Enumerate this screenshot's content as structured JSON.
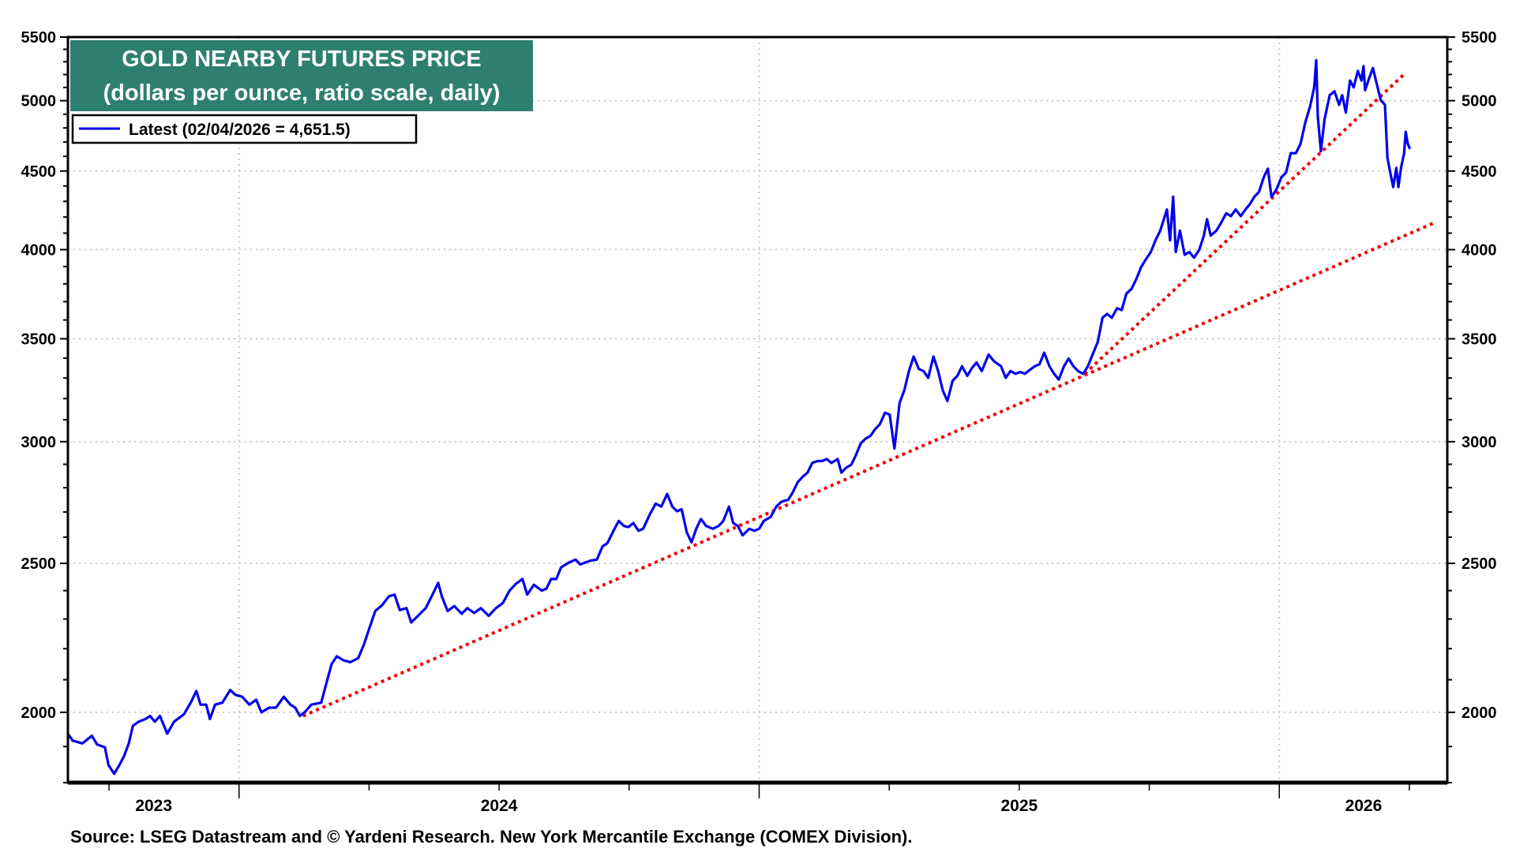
{
  "chart_data": {
    "type": "line",
    "title": "GOLD NEARBY FUTURES PRICE",
    "subtitle": "(dollars per ounce, ratio scale, daily)",
    "legend": [
      "Latest (02/04/2026 = 4,651.5)"
    ],
    "legend_placement": "top-left",
    "source": "Source: LSEG Datastream and © Yardeni Research. New York Mercantile Exchange (COMEX Division).",
    "yscale": "log",
    "ylim": [
      1800,
      5500
    ],
    "xlim": [
      2023.671,
      2026.323
    ],
    "y_ticks": [
      2000,
      2500,
      3000,
      3500,
      4000,
      4500,
      5000,
      5500
    ],
    "x_tick_labels": [
      {
        "label": "2023",
        "at": 2023.836
      },
      {
        "label": "2024",
        "at": 2024.5
      },
      {
        "label": "2025",
        "at": 2025.5
      },
      {
        "label": "2026",
        "at": 2026.162
      }
    ],
    "x_gridlines": [
      2024,
      2025,
      2026
    ],
    "grid": true,
    "colors": {
      "series": "#0000ee",
      "trend": "#ee0000",
      "title_bg": "#2e7f70"
    },
    "series": [
      {
        "name": "Gold nearby futures",
        "points": [
          [
            2023.671,
            1937
          ],
          [
            2023.68,
            1917
          ],
          [
            2023.699,
            1909
          ],
          [
            2023.717,
            1931
          ],
          [
            2023.727,
            1906
          ],
          [
            2023.742,
            1898
          ],
          [
            2023.749,
            1848
          ],
          [
            2023.76,
            1824
          ],
          [
            2023.77,
            1848
          ],
          [
            2023.779,
            1873
          ],
          [
            2023.788,
            1909
          ],
          [
            2023.796,
            1960
          ],
          [
            2023.807,
            1972
          ],
          [
            2023.82,
            1980
          ],
          [
            2023.829,
            1989
          ],
          [
            2023.838,
            1972
          ],
          [
            2023.848,
            1989
          ],
          [
            2023.862,
            1937
          ],
          [
            2023.875,
            1972
          ],
          [
            2023.894,
            1994
          ],
          [
            2023.907,
            2029
          ],
          [
            2023.918,
            2065
          ],
          [
            2023.926,
            2023
          ],
          [
            2023.937,
            2023
          ],
          [
            2023.944,
            1980
          ],
          [
            2023.954,
            2023
          ],
          [
            2023.968,
            2029
          ],
          [
            2023.983,
            2068
          ],
          [
            2023.993,
            2053
          ],
          [
            2024.006,
            2047
          ],
          [
            2024.02,
            2023
          ],
          [
            2024.033,
            2038
          ],
          [
            2024.043,
            2000
          ],
          [
            2024.058,
            2014
          ],
          [
            2024.071,
            2014
          ],
          [
            2024.086,
            2047
          ],
          [
            2024.099,
            2023
          ],
          [
            2024.108,
            2014
          ],
          [
            2024.117,
            1989
          ],
          [
            2024.126,
            2000
          ],
          [
            2024.139,
            2023
          ],
          [
            2024.158,
            2029
          ],
          [
            2024.167,
            2083
          ],
          [
            2024.178,
            2150
          ],
          [
            2024.188,
            2175
          ],
          [
            2024.201,
            2162
          ],
          [
            2024.214,
            2156
          ],
          [
            2024.229,
            2169
          ],
          [
            2024.24,
            2213
          ],
          [
            2024.251,
            2271
          ],
          [
            2024.262,
            2328
          ],
          [
            2024.275,
            2348
          ],
          [
            2024.288,
            2379
          ],
          [
            2024.299,
            2386
          ],
          [
            2024.309,
            2331
          ],
          [
            2024.322,
            2338
          ],
          [
            2024.331,
            2288
          ],
          [
            2024.344,
            2311
          ],
          [
            2024.359,
            2338
          ],
          [
            2024.372,
            2386
          ],
          [
            2024.383,
            2428
          ],
          [
            2024.39,
            2379
          ],
          [
            2024.401,
            2328
          ],
          [
            2024.414,
            2345
          ],
          [
            2024.428,
            2318
          ],
          [
            2024.439,
            2338
          ],
          [
            2024.452,
            2321
          ],
          [
            2024.465,
            2338
          ],
          [
            2024.48,
            2311
          ],
          [
            2024.494,
            2338
          ],
          [
            2024.507,
            2355
          ],
          [
            2024.52,
            2400
          ],
          [
            2024.532,
            2424
          ],
          [
            2024.545,
            2442
          ],
          [
            2024.554,
            2386
          ],
          [
            2024.567,
            2421
          ],
          [
            2024.582,
            2400
          ],
          [
            2024.591,
            2407
          ],
          [
            2024.6,
            2442
          ],
          [
            2024.61,
            2442
          ],
          [
            2024.619,
            2485
          ],
          [
            2024.634,
            2503
          ],
          [
            2024.647,
            2514
          ],
          [
            2024.656,
            2496
          ],
          [
            2024.675,
            2510
          ],
          [
            2024.688,
            2514
          ],
          [
            2024.699,
            2565
          ],
          [
            2024.708,
            2576
          ],
          [
            2024.721,
            2629
          ],
          [
            2024.73,
            2664
          ],
          [
            2024.74,
            2644
          ],
          [
            2024.749,
            2640
          ],
          [
            2024.758,
            2656
          ],
          [
            2024.768,
            2625
          ],
          [
            2024.777,
            2633
          ],
          [
            2024.79,
            2691
          ],
          [
            2024.801,
            2734
          ],
          [
            2024.812,
            2722
          ],
          [
            2024.823,
            2774
          ],
          [
            2024.833,
            2722
          ],
          [
            2024.842,
            2703
          ],
          [
            2024.851,
            2711
          ],
          [
            2024.861,
            2618
          ],
          [
            2024.87,
            2580
          ],
          [
            2024.879,
            2633
          ],
          [
            2024.888,
            2672
          ],
          [
            2024.898,
            2644
          ],
          [
            2024.911,
            2633
          ],
          [
            2024.922,
            2644
          ],
          [
            2024.931,
            2664
          ],
          [
            2024.942,
            2722
          ],
          [
            2024.95,
            2656
          ],
          [
            2024.959,
            2644
          ],
          [
            2024.968,
            2607
          ],
          [
            2024.981,
            2633
          ],
          [
            2024.991,
            2625
          ],
          [
            2025.0,
            2633
          ],
          [
            2025.009,
            2664
          ],
          [
            2025.022,
            2680
          ],
          [
            2025.033,
            2722
          ],
          [
            2025.043,
            2742
          ],
          [
            2025.056,
            2750
          ],
          [
            2025.065,
            2782
          ],
          [
            2025.074,
            2823
          ],
          [
            2025.084,
            2847
          ],
          [
            2025.093,
            2864
          ],
          [
            2025.102,
            2906
          ],
          [
            2025.112,
            2914
          ],
          [
            2025.121,
            2914
          ],
          [
            2025.13,
            2923
          ],
          [
            2025.139,
            2906
          ],
          [
            2025.151,
            2923
          ],
          [
            2025.158,
            2864
          ],
          [
            2025.167,
            2885
          ],
          [
            2025.177,
            2898
          ],
          [
            2025.186,
            2940
          ],
          [
            2025.195,
            2991
          ],
          [
            2025.204,
            3013
          ],
          [
            2025.214,
            3026
          ],
          [
            2025.223,
            3057
          ],
          [
            2025.232,
            3079
          ],
          [
            2025.242,
            3133
          ],
          [
            2025.251,
            3124
          ],
          [
            2025.26,
            2969
          ],
          [
            2025.27,
            3179
          ],
          [
            2025.279,
            3240
          ],
          [
            2025.288,
            3335
          ],
          [
            2025.297,
            3408
          ],
          [
            2025.307,
            3345
          ],
          [
            2025.316,
            3335
          ],
          [
            2025.325,
            3301
          ],
          [
            2025.335,
            3408
          ],
          [
            2025.344,
            3335
          ],
          [
            2025.353,
            3240
          ],
          [
            2025.362,
            3188
          ],
          [
            2025.372,
            3287
          ],
          [
            2025.381,
            3311
          ],
          [
            2025.39,
            3359
          ],
          [
            2025.4,
            3311
          ],
          [
            2025.409,
            3349
          ],
          [
            2025.418,
            3378
          ],
          [
            2025.428,
            3335
          ],
          [
            2025.441,
            3418
          ],
          [
            2025.452,
            3383
          ],
          [
            2025.465,
            3359
          ],
          [
            2025.474,
            3301
          ],
          [
            2025.483,
            3335
          ],
          [
            2025.493,
            3321
          ],
          [
            2025.502,
            3330
          ],
          [
            2025.511,
            3321
          ],
          [
            2025.52,
            3340
          ],
          [
            2025.53,
            3359
          ],
          [
            2025.539,
            3369
          ],
          [
            2025.548,
            3428
          ],
          [
            2025.558,
            3359
          ],
          [
            2025.567,
            3321
          ],
          [
            2025.576,
            3292
          ],
          [
            2025.586,
            3359
          ],
          [
            2025.595,
            3398
          ],
          [
            2025.604,
            3359
          ],
          [
            2025.613,
            3335
          ],
          [
            2025.623,
            3321
          ],
          [
            2025.632,
            3359
          ],
          [
            2025.641,
            3418
          ],
          [
            2025.651,
            3483
          ],
          [
            2025.66,
            3612
          ],
          [
            2025.669,
            3633
          ],
          [
            2025.678,
            3612
          ],
          [
            2025.688,
            3664
          ],
          [
            2025.697,
            3654
          ],
          [
            2025.706,
            3745
          ],
          [
            2025.716,
            3772
          ],
          [
            2025.725,
            3827
          ],
          [
            2025.734,
            3894
          ],
          [
            2025.743,
            3940
          ],
          [
            2025.753,
            3986
          ],
          [
            2025.762,
            4056
          ],
          [
            2025.771,
            4115
          ],
          [
            2025.777,
            4175
          ],
          [
            2025.784,
            4248
          ],
          [
            2025.79,
            4056
          ],
          [
            2025.796,
            4330
          ],
          [
            2025.801,
            3986
          ],
          [
            2025.809,
            4115
          ],
          [
            2025.818,
            3969
          ],
          [
            2025.827,
            3986
          ],
          [
            2025.836,
            3952
          ],
          [
            2025.846,
            3998
          ],
          [
            2025.855,
            4085
          ],
          [
            2025.861,
            4187
          ],
          [
            2025.868,
            4085
          ],
          [
            2025.879,
            4115
          ],
          [
            2025.888,
            4163
          ],
          [
            2025.898,
            4224
          ],
          [
            2025.907,
            4206
          ],
          [
            2025.916,
            4248
          ],
          [
            2025.926,
            4206
          ],
          [
            2025.935,
            4248
          ],
          [
            2025.944,
            4285
          ],
          [
            2025.952,
            4330
          ],
          [
            2025.961,
            4361
          ],
          [
            2025.97,
            4458
          ],
          [
            2025.978,
            4516
          ],
          [
            2025.985,
            4330
          ],
          [
            2025.994,
            4374
          ],
          [
            2026.004,
            4458
          ],
          [
            2026.013,
            4490
          ],
          [
            2026.022,
            4622
          ],
          [
            2026.032,
            4622
          ],
          [
            2026.041,
            4689
          ],
          [
            2026.05,
            4841
          ],
          [
            2026.059,
            4955
          ],
          [
            2026.067,
            5101
          ],
          [
            2026.071,
            5312
          ],
          [
            2026.074,
            4883
          ],
          [
            2026.08,
            4635
          ],
          [
            2026.087,
            4862
          ],
          [
            2026.097,
            5042
          ],
          [
            2026.106,
            5071
          ],
          [
            2026.115,
            4969
          ],
          [
            2026.121,
            5042
          ],
          [
            2026.128,
            4912
          ],
          [
            2026.136,
            5153
          ],
          [
            2026.143,
            5101
          ],
          [
            2026.151,
            5228
          ],
          [
            2026.158,
            5153
          ],
          [
            2026.162,
            5266
          ],
          [
            2026.165,
            5079
          ],
          [
            2026.173,
            5175
          ],
          [
            2026.18,
            5251
          ],
          [
            2026.188,
            5116
          ],
          [
            2026.195,
            5005
          ],
          [
            2026.203,
            4969
          ],
          [
            2026.208,
            4589
          ],
          [
            2026.214,
            4477
          ],
          [
            2026.219,
            4393
          ],
          [
            2026.225,
            4522
          ],
          [
            2026.229,
            4393
          ],
          [
            2026.234,
            4522
          ],
          [
            2026.24,
            4622
          ],
          [
            2026.243,
            4772
          ],
          [
            2026.247,
            4689
          ],
          [
            2026.251,
            4651.5
          ]
        ]
      }
    ],
    "trendlines": [
      {
        "name": "long-term trend",
        "from": [
          2024.123,
          1989
        ],
        "to": [
          2026.297,
          4163
        ]
      },
      {
        "name": "short-term trend",
        "from": [
          2025.626,
          3321
        ],
        "to": [
          2026.242,
          5210
        ]
      }
    ]
  }
}
